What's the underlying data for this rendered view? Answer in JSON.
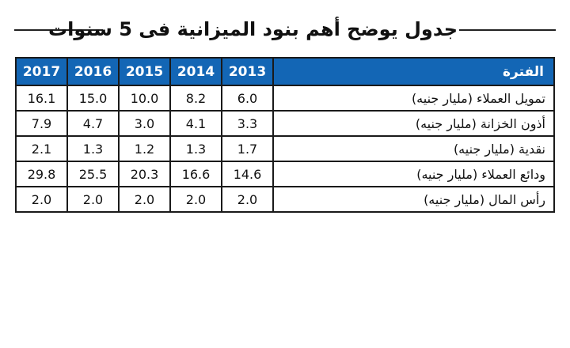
{
  "title": "جدول يوضح أهم بنود الميزانية فى 5 سنوات",
  "header": {
    "period_label": "الفترة",
    "years": [
      "2017",
      "2016",
      "2015",
      "2014",
      "2013"
    ]
  },
  "rows": [
    {
      "label": "تمويل العملاء (مليار جنيه)",
      "values": [
        "16.1",
        "15.0",
        "10.0",
        "8.2",
        "6.0"
      ]
    },
    {
      "label": "أذون الخزانة (مليار جنيه)",
      "values": [
        "7.9",
        "4.7",
        "3.0",
        "4.1",
        "3.3"
      ]
    },
    {
      "label": "نقدية (مليار جنيه)",
      "values": [
        "2.1",
        "1.3",
        "1.2",
        "1.3",
        "1.7"
      ]
    },
    {
      "label": "ودائع العملاء (مليار جنيه)",
      "values": [
        "29.8",
        "25.5",
        "20.3",
        "16.6",
        "14.6"
      ]
    },
    {
      "label": "رأس المال (مليار جنيه)",
      "values": [
        "2.0",
        "2.0",
        "2.0",
        "2.0",
        "2.0"
      ]
    }
  ],
  "colors": {
    "header_bg": "#1366b5",
    "header_text": "#ffffff",
    "border": "#1a1a1a"
  }
}
